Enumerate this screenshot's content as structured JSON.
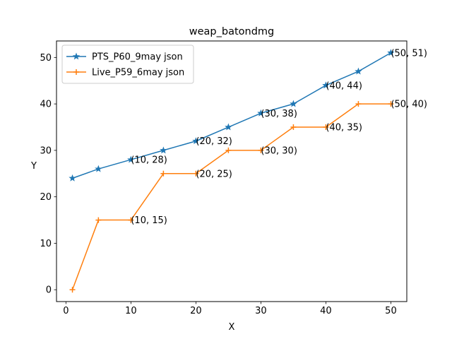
{
  "chart_data": {
    "type": "line",
    "title": "weap_batondmg",
    "xlabel": "X",
    "ylabel": "Y",
    "xlim": [
      -1.45,
      52.45
    ],
    "ylim": [
      -2.55,
      53.55
    ],
    "xticks": [
      0,
      10,
      20,
      30,
      40,
      50
    ],
    "yticks": [
      0,
      10,
      20,
      30,
      40,
      50
    ],
    "grid": false,
    "legend_position": "top-left",
    "series": [
      {
        "name": "PTS_P60_9may json",
        "color": "#1f77b4",
        "marker": "star",
        "x": [
          1,
          5,
          10,
          15,
          20,
          25,
          30,
          35,
          40,
          45,
          50
        ],
        "y": [
          24,
          26,
          28,
          30,
          32,
          35,
          38,
          40,
          44,
          47,
          51
        ]
      },
      {
        "name": "Live_P59_6may json",
        "color": "#ff7f0e",
        "marker": "plus",
        "x": [
          1,
          5,
          10,
          15,
          20,
          25,
          30,
          35,
          40,
          45,
          50
        ],
        "y": [
          0,
          15,
          15,
          25,
          25,
          30,
          30,
          35,
          35,
          40,
          40
        ]
      }
    ],
    "annotations": [
      {
        "text": "(10, 28)",
        "x": 10,
        "y": 28
      },
      {
        "text": "(20, 32)",
        "x": 20,
        "y": 32
      },
      {
        "text": "(30, 38)",
        "x": 30,
        "y": 38
      },
      {
        "text": "(40, 44)",
        "x": 40,
        "y": 44
      },
      {
        "text": "(50, 51)",
        "x": 50,
        "y": 51
      },
      {
        "text": "(10, 15)",
        "x": 10,
        "y": 15
      },
      {
        "text": "(20, 25)",
        "x": 20,
        "y": 25
      },
      {
        "text": "(30, 30)",
        "x": 30,
        "y": 30
      },
      {
        "text": "(40, 35)",
        "x": 40,
        "y": 35
      },
      {
        "text": "(50, 40)",
        "x": 50,
        "y": 40
      }
    ]
  }
}
